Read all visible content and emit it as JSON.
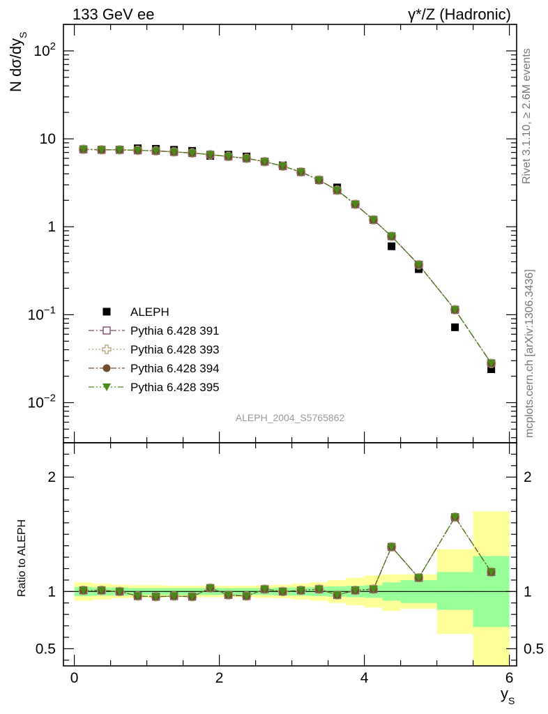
{
  "header": {
    "left": "133 GeV ee",
    "right": "γ*/Z (Hadronic)"
  },
  "side_labels": {
    "rivet": "Rivet 3.1.10, ≥ 2.6M events",
    "mcplots": "mcplots.cern.ch [arXiv:1306.3436]"
  },
  "watermark": "ALEPH_2004_S5765862",
  "colors": {
    "data": "#000000",
    "p391": "#7b4a6b",
    "p393": "#b3a27a",
    "p394": "#6e4a2e",
    "p395": "#4b8a1a",
    "band_inner": "#99ff99",
    "band_outer": "#ffff99"
  },
  "chart_data": [
    {
      "type": "scatter",
      "panel": "main",
      "ylabel_main": "N dσ/dy",
      "ylabel_sub": "S",
      "yscale": "log",
      "ylim": [
        0.0035,
        200
      ],
      "xlim": [
        -0.15,
        6.1
      ],
      "y_tick_labels": [
        {
          "value": 0.01,
          "base": "10",
          "exp": "−2"
        },
        {
          "value": 0.1,
          "base": "10",
          "exp": "−1"
        },
        {
          "value": 1,
          "base": "1",
          "exp": ""
        },
        {
          "value": 10,
          "base": "10",
          "exp": ""
        },
        {
          "value": 100,
          "base": "10",
          "exp": "2"
        }
      ],
      "x": [
        0.125,
        0.375,
        0.625,
        0.875,
        1.125,
        1.375,
        1.625,
        1.875,
        2.125,
        2.375,
        2.625,
        2.875,
        3.125,
        3.375,
        3.625,
        3.875,
        4.125,
        4.375,
        4.75,
        5.25,
        5.75
      ],
      "series": [
        {
          "name": "ALEPH",
          "key": "data",
          "marker": "square-filled",
          "values": [
            7.6,
            7.5,
            7.5,
            7.8,
            7.7,
            7.5,
            7.3,
            6.4,
            6.6,
            6.3,
            5.5,
            5.0,
            4.2,
            3.4,
            2.8,
            1.8,
            1.2,
            0.6,
            0.33,
            0.072,
            0.024
          ]
        },
        {
          "name": "Pythia 6.428 391",
          "key": "p391",
          "marker": "square-open",
          "dash": "8 3 2 3",
          "values": [
            7.6,
            7.5,
            7.5,
            7.4,
            7.3,
            7.1,
            6.9,
            6.6,
            6.3,
            6.0,
            5.5,
            4.9,
            4.2,
            3.4,
            2.6,
            1.8,
            1.2,
            0.78,
            0.37,
            0.114,
            0.028
          ]
        },
        {
          "name": "Pythia 6.428 393",
          "key": "p393",
          "marker": "cross-open",
          "dash": "2 3",
          "values": [
            7.6,
            7.5,
            7.5,
            7.4,
            7.3,
            7.1,
            6.9,
            6.6,
            6.3,
            6.0,
            5.5,
            4.9,
            4.2,
            3.4,
            2.6,
            1.8,
            1.2,
            0.78,
            0.37,
            0.114,
            0.028
          ]
        },
        {
          "name": "Pythia 6.428 394",
          "key": "p394",
          "marker": "circle-filled",
          "dash": "8 3 2 3",
          "values": [
            7.6,
            7.5,
            7.5,
            7.4,
            7.3,
            7.1,
            6.9,
            6.6,
            6.3,
            6.0,
            5.5,
            4.9,
            4.2,
            3.4,
            2.6,
            1.8,
            1.2,
            0.78,
            0.37,
            0.114,
            0.028
          ]
        },
        {
          "name": "Pythia 6.428 395",
          "key": "p395",
          "marker": "triangle-down-filled",
          "dash": "8 3 2 3 2 3",
          "values": [
            7.6,
            7.5,
            7.5,
            7.4,
            7.3,
            7.1,
            6.9,
            6.6,
            6.3,
            6.0,
            5.5,
            4.9,
            4.2,
            3.4,
            2.6,
            1.8,
            1.2,
            0.78,
            0.37,
            0.114,
            0.028
          ]
        }
      ],
      "legend": "lower-left"
    },
    {
      "type": "line",
      "panel": "ratio",
      "ylabel": "Ratio to ALEPH",
      "xlabel_main": "y",
      "xlabel_sub": "S",
      "ylim": [
        0.35,
        2.3
      ],
      "xlim": [
        -0.15,
        6.1
      ],
      "x_ticks": [
        0,
        2,
        4,
        6
      ],
      "y_ticks": [
        0.5,
        1,
        2
      ],
      "reference_line": 1,
      "bin_edges": [
        0,
        0.25,
        0.5,
        0.75,
        1.0,
        1.25,
        1.5,
        1.75,
        2.0,
        2.25,
        2.5,
        2.75,
        3.0,
        3.25,
        3.5,
        3.75,
        4.0,
        4.25,
        4.5,
        5.0,
        5.5,
        6.0
      ],
      "band_inner": {
        "low": [
          0.96,
          0.965,
          0.965,
          0.97,
          0.97,
          0.97,
          0.97,
          0.97,
          0.97,
          0.97,
          0.97,
          0.965,
          0.965,
          0.96,
          0.955,
          0.95,
          0.945,
          0.92,
          0.9,
          0.84,
          0.69
        ],
        "high": [
          1.04,
          1.035,
          1.035,
          1.03,
          1.03,
          1.03,
          1.03,
          1.03,
          1.03,
          1.03,
          1.03,
          1.035,
          1.035,
          1.04,
          1.045,
          1.05,
          1.055,
          1.08,
          1.1,
          1.17,
          1.31
        ]
      },
      "band_outer": {
        "low": [
          0.92,
          0.93,
          0.94,
          0.945,
          0.945,
          0.95,
          0.95,
          0.95,
          0.95,
          0.95,
          0.945,
          0.94,
          0.93,
          0.92,
          0.9,
          0.88,
          0.86,
          0.83,
          0.85,
          0.63,
          0.35
        ],
        "high": [
          1.08,
          1.07,
          1.06,
          1.055,
          1.055,
          1.05,
          1.05,
          1.05,
          1.05,
          1.05,
          1.055,
          1.06,
          1.07,
          1.08,
          1.1,
          1.12,
          1.14,
          1.15,
          1.15,
          1.37,
          1.7
        ]
      },
      "x": [
        0.125,
        0.375,
        0.625,
        0.875,
        1.125,
        1.375,
        1.625,
        1.875,
        2.125,
        2.375,
        2.625,
        2.875,
        3.125,
        3.375,
        3.625,
        3.875,
        4.125,
        4.375,
        4.75,
        5.25,
        5.75
      ],
      "series": [
        {
          "name": "Pythia 6.428 391",
          "key": "p391",
          "values": [
            1.01,
            1.01,
            1.0,
            0.96,
            0.955,
            0.96,
            0.955,
            1.03,
            0.97,
            0.96,
            1.02,
            1.0,
            1.01,
            1.02,
            0.97,
            1.01,
            1.02,
            1.39,
            1.12,
            1.65,
            1.17
          ]
        },
        {
          "name": "Pythia 6.428 393",
          "key": "p393",
          "values": [
            1.01,
            1.01,
            1.0,
            0.96,
            0.955,
            0.96,
            0.955,
            1.03,
            0.97,
            0.96,
            1.02,
            1.0,
            1.01,
            1.02,
            0.97,
            1.01,
            1.02,
            1.39,
            1.12,
            1.65,
            1.17
          ]
        },
        {
          "name": "Pythia 6.428 394",
          "key": "p394",
          "values": [
            1.01,
            1.01,
            1.0,
            0.96,
            0.955,
            0.96,
            0.955,
            1.03,
            0.97,
            0.96,
            1.02,
            1.0,
            1.01,
            1.02,
            0.97,
            1.01,
            1.02,
            1.39,
            1.12,
            1.65,
            1.17
          ]
        },
        {
          "name": "Pythia 6.428 395",
          "key": "p395",
          "values": [
            1.01,
            1.01,
            1.0,
            0.96,
            0.955,
            0.96,
            0.955,
            1.03,
            0.97,
            0.96,
            1.02,
            1.0,
            1.01,
            1.02,
            0.97,
            1.01,
            1.02,
            1.39,
            1.12,
            1.65,
            1.17
          ]
        }
      ]
    }
  ]
}
